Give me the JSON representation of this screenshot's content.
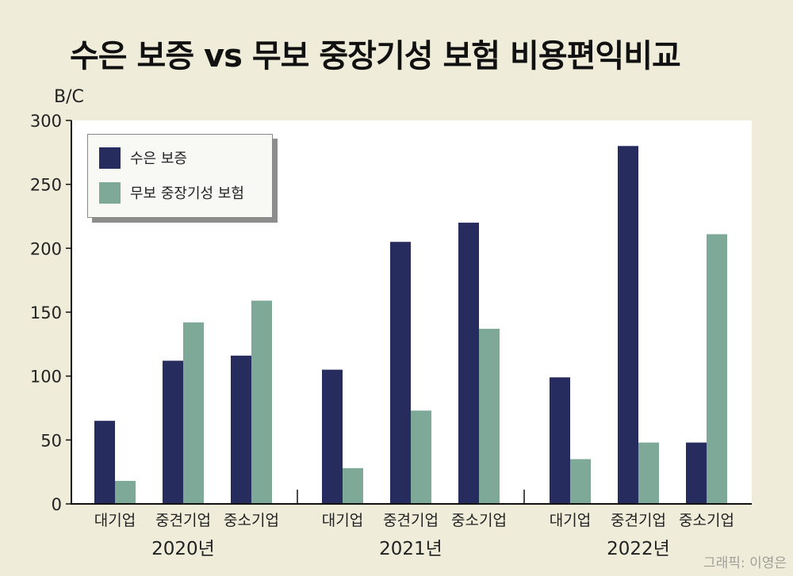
{
  "title": "수은 보증 vs 무보 중장기성 보험 비용편익비교",
  "credit": "그래픽: 이영은",
  "chart_data": {
    "type": "bar",
    "ylabel": "B/C",
    "ylim": [
      0,
      300
    ],
    "yticks": [
      0,
      50,
      100,
      150,
      200,
      250,
      300
    ],
    "groups": [
      {
        "year": "2020년",
        "categories": [
          "대기업",
          "중견기업",
          "중소기업"
        ]
      },
      {
        "year": "2021년",
        "categories": [
          "대기업",
          "중견기업",
          "중소기업"
        ]
      },
      {
        "year": "2022년",
        "categories": [
          "대기업",
          "중견기업",
          "중소기업"
        ]
      }
    ],
    "series": [
      {
        "name": "수은 보증",
        "color": "#262c5e",
        "values": [
          65,
          112,
          116,
          105,
          205,
          220,
          99,
          280,
          48
        ]
      },
      {
        "name": "무보 중장기성 보험",
        "color": "#7ea898",
        "values": [
          18,
          142,
          159,
          28,
          73,
          137,
          35,
          48,
          211
        ]
      }
    ],
    "legend": "top-left",
    "grid": false
  }
}
